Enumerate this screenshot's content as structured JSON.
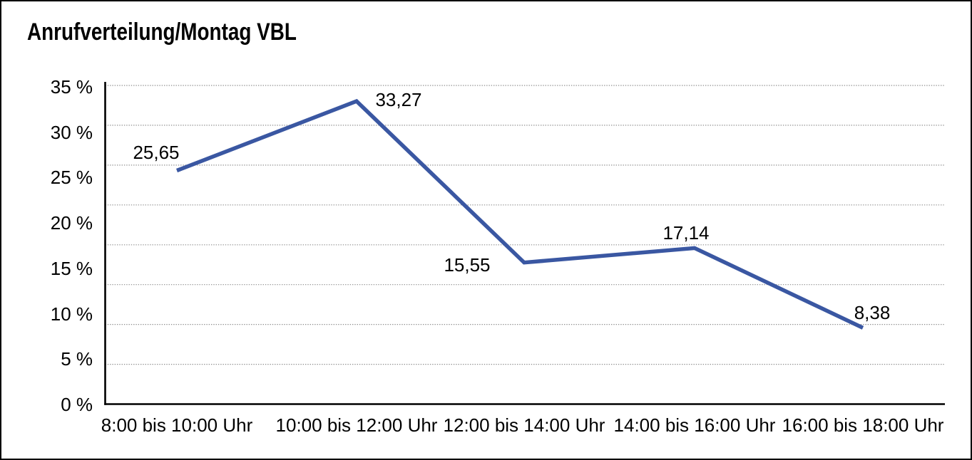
{
  "chart_data": {
    "type": "line",
    "title": "Anrufverteilung/Montag VBL",
    "categories": [
      "8:00 bis 10:00 Uhr",
      "10:00 bis 12:00 Uhr",
      "12:00 bis 14:00 Uhr",
      "14:00 bis 16:00 Uhr",
      "16:00 bis 18:00 Uhr"
    ],
    "values": [
      25.65,
      33.27,
      15.55,
      17.14,
      8.38
    ],
    "point_labels": [
      "25,65",
      "33,27",
      "15,55",
      "17,14",
      "8,38"
    ],
    "ytick_labels": [
      "35 %",
      "30 %",
      "25 %",
      "20 %",
      "15 %",
      "10 %",
      "5 %",
      "0 %"
    ],
    "ylim": [
      0,
      35
    ],
    "ytick_step": 5,
    "xlabel": "",
    "ylabel": "",
    "grid": "horizontal-dotted",
    "legend_position": "none",
    "line_color": "#3A57A2",
    "axis_color": "#000000",
    "gridline_color": "#8F8F8F",
    "text_color": "#000000",
    "background_color": "#FFFFFF",
    "frame_color": "#000000"
  }
}
